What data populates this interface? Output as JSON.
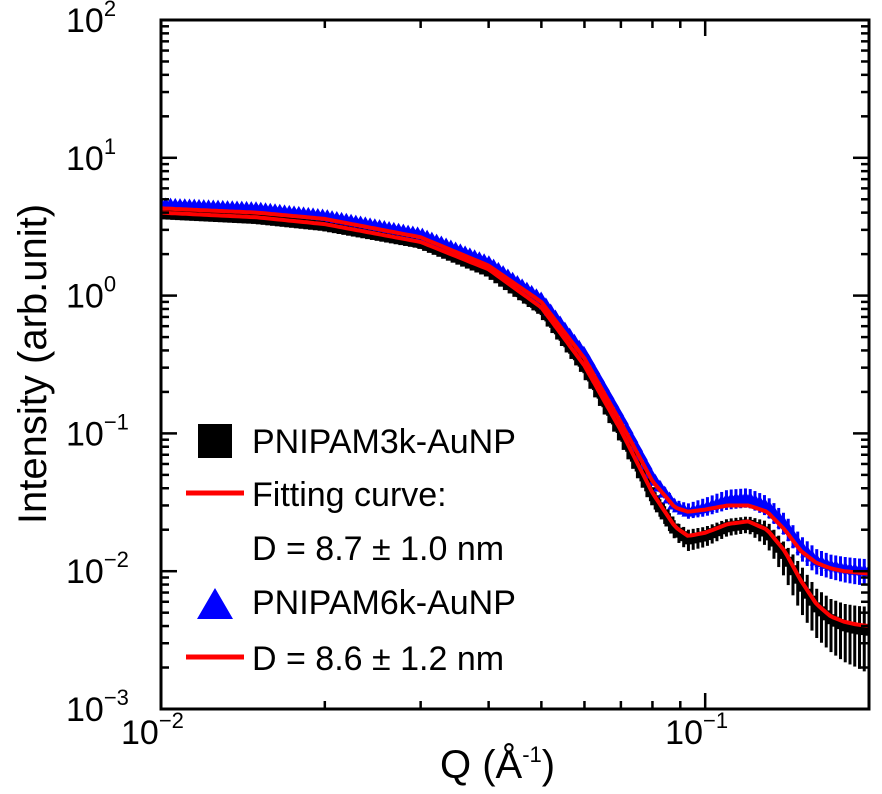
{
  "chart_data": {
    "type": "scatter",
    "xscale": "log",
    "yscale": "log",
    "xlim": [
      0.01,
      0.2
    ],
    "ylim": [
      0.001,
      100
    ],
    "xlabel": "Q (Å",
    "xlabel_sup": "-1",
    "xlabel_end": ")",
    "ylabel": "Intensity (arb.unit)",
    "x_ticks": [
      {
        "value": 0.01,
        "base": "10",
        "exp": "−2"
      },
      {
        "value": 0.1,
        "base": "10",
        "exp": "−1"
      }
    ],
    "y_ticks": [
      {
        "value": 100,
        "base": "10",
        "exp": "2"
      },
      {
        "value": 10,
        "base": "10",
        "exp": "1"
      },
      {
        "value": 1,
        "base": "10",
        "exp": "0"
      },
      {
        "value": 0.1,
        "base": "10",
        "exp": "−1"
      },
      {
        "value": 0.01,
        "base": "10",
        "exp": "−2"
      },
      {
        "value": 0.001,
        "base": "10",
        "exp": "−3"
      }
    ],
    "series": [
      {
        "name": "PNIPAM3k-AuNP",
        "marker": "square",
        "color": "#000000",
        "x": [
          0.01,
          0.015,
          0.02,
          0.03,
          0.04,
          0.05,
          0.06,
          0.07,
          0.08,
          0.088,
          0.093,
          0.1,
          0.11,
          0.12,
          0.13,
          0.14,
          0.15,
          0.16,
          0.17,
          0.18,
          0.19,
          0.2
        ],
        "y": [
          3.9,
          3.6,
          3.2,
          2.4,
          1.5,
          0.8,
          0.3,
          0.1,
          0.035,
          0.02,
          0.017,
          0.018,
          0.021,
          0.022,
          0.019,
          0.013,
          0.008,
          0.0055,
          0.0045,
          0.004,
          0.0038,
          0.0037
        ],
        "y_low": [
          3.7,
          3.4,
          3.0,
          2.2,
          1.4,
          0.72,
          0.27,
          0.09,
          0.03,
          0.017,
          0.014,
          0.015,
          0.018,
          0.019,
          0.015,
          0.009,
          0.005,
          0.0033,
          0.0026,
          0.0022,
          0.002,
          0.0018
        ],
        "y_high": [
          4.1,
          3.8,
          3.4,
          2.6,
          1.6,
          0.88,
          0.33,
          0.11,
          0.04,
          0.023,
          0.02,
          0.021,
          0.024,
          0.025,
          0.023,
          0.016,
          0.011,
          0.0075,
          0.0063,
          0.0058,
          0.0056,
          0.0055
        ]
      },
      {
        "name": "Fitting curve:",
        "line2": "D = 8.7 ± 1.0 nm",
        "marker": "line",
        "color": "#ff0000",
        "x": [
          0.01,
          0.015,
          0.02,
          0.03,
          0.04,
          0.05,
          0.06,
          0.07,
          0.08,
          0.088,
          0.093,
          0.1,
          0.11,
          0.12,
          0.13,
          0.14,
          0.15,
          0.16,
          0.17,
          0.18,
          0.19,
          0.2
        ],
        "y": [
          4.0,
          3.7,
          3.3,
          2.45,
          1.55,
          0.82,
          0.31,
          0.105,
          0.037,
          0.021,
          0.018,
          0.019,
          0.022,
          0.023,
          0.02,
          0.014,
          0.0085,
          0.0058,
          0.0047,
          0.0043,
          0.0041,
          0.004
        ]
      },
      {
        "name": "PNIPAM6k-AuNP",
        "marker": "triangle",
        "color": "#0000ff",
        "x": [
          0.01,
          0.015,
          0.02,
          0.03,
          0.04,
          0.05,
          0.06,
          0.07,
          0.08,
          0.088,
          0.093,
          0.1,
          0.11,
          0.12,
          0.13,
          0.14,
          0.15,
          0.16,
          0.17,
          0.18,
          0.19,
          0.2
        ],
        "y": [
          4.6,
          4.3,
          3.8,
          2.8,
          1.75,
          0.95,
          0.38,
          0.13,
          0.048,
          0.03,
          0.027,
          0.029,
          0.033,
          0.034,
          0.03,
          0.022,
          0.015,
          0.012,
          0.011,
          0.0105,
          0.0102,
          0.01
        ],
        "y_low": [
          4.3,
          4.0,
          3.5,
          2.6,
          1.62,
          0.87,
          0.35,
          0.12,
          0.044,
          0.027,
          0.024,
          0.025,
          0.028,
          0.029,
          0.025,
          0.018,
          0.012,
          0.0095,
          0.0088,
          0.0083,
          0.008,
          0.0078
        ],
        "y_high": [
          4.9,
          4.6,
          4.1,
          3.0,
          1.88,
          1.03,
          0.41,
          0.14,
          0.052,
          0.033,
          0.031,
          0.034,
          0.039,
          0.04,
          0.035,
          0.026,
          0.018,
          0.0145,
          0.0132,
          0.0127,
          0.0124,
          0.0122
        ]
      },
      {
        "name": "D = 8.6 ± 1.2 nm",
        "marker": "line",
        "color": "#ff0000",
        "x": [
          0.01,
          0.015,
          0.02,
          0.03,
          0.04,
          0.05,
          0.06,
          0.07,
          0.08,
          0.088,
          0.093,
          0.1,
          0.11,
          0.12,
          0.13,
          0.14,
          0.15,
          0.16,
          0.17,
          0.18,
          0.19,
          0.2
        ],
        "y": [
          4.3,
          4.0,
          3.6,
          2.65,
          1.65,
          0.9,
          0.35,
          0.12,
          0.045,
          0.029,
          0.027,
          0.028,
          0.03,
          0.03,
          0.027,
          0.02,
          0.014,
          0.0115,
          0.0105,
          0.01,
          0.0098,
          0.0096
        ]
      }
    ],
    "legend_position": "lower-left"
  }
}
